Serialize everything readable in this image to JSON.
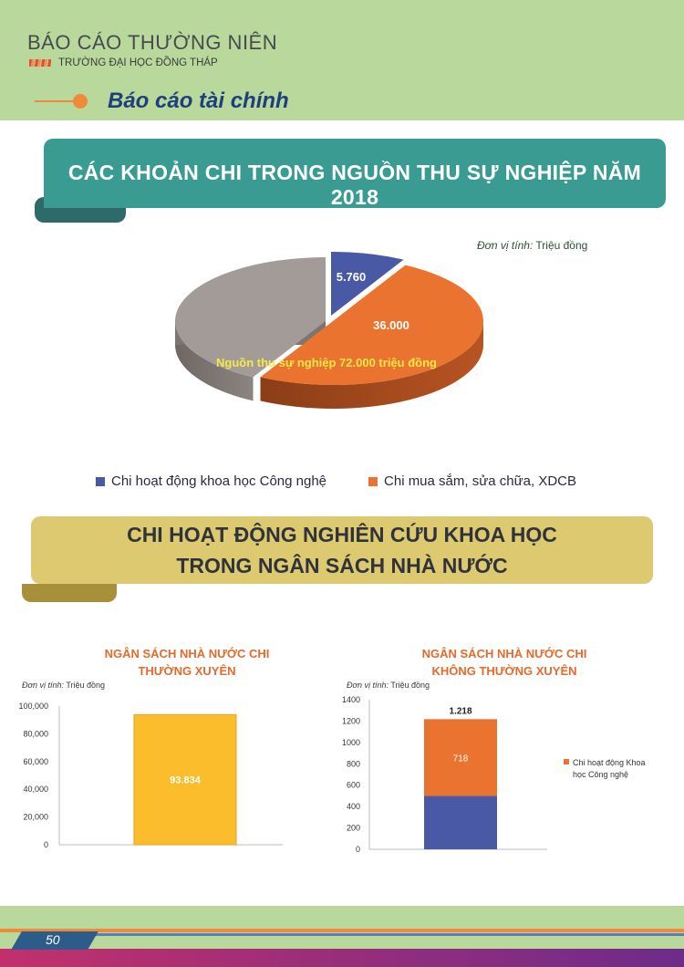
{
  "header": {
    "report_title": "BÁO CÁO THƯỜNG NIÊN",
    "school": "TRƯỜNG ĐẠI HỌC ĐỒNG THÁP",
    "section": "Báo cáo tài chính"
  },
  "banner1": {
    "title": "CÁC KHOẢN CHI TRONG NGUỒN THU SỰ NGHIỆP NĂM 2018"
  },
  "banner2": {
    "line1": "CHI HOẠT ĐỘNG NGHIÊN CỨU KHOA HỌC",
    "line2": "TRONG NGÂN SÁCH NHÀ NƯỚC"
  },
  "footer": {
    "page_number": "50"
  },
  "colors": {
    "blue": "#4a59a5",
    "orange": "#e9732f",
    "gray": "#a39b98",
    "yellow": "#fbbd2c",
    "teal": "#3a9b93",
    "gold": "#ddc970",
    "green_band": "#b9d89c"
  },
  "chart_data": [
    {
      "type": "pie",
      "unit_label_italic": "Đơn vị tính:",
      "unit_label": "Triệu đồng",
      "center_label": "Nguồn thu sự nghiệp 72.000 triệu đồng",
      "slices": [
        {
          "name": "Chi hoạt động khoa học Công nghệ",
          "value": 5760,
          "label": "5.760",
          "color": "#4a59a5"
        },
        {
          "name": "Chi mua sắm, sửa chữa, XDCB",
          "value": 36000,
          "label": "36.000",
          "color": "#e9732f"
        },
        {
          "name": "",
          "value": 30240,
          "label": "",
          "color": "#a39b98"
        }
      ],
      "legend": [
        "Chi hoạt động khoa học Công nghệ",
        "Chi mua sắm, sửa chữa, XDCB"
      ]
    },
    {
      "type": "bar",
      "title_line1": "NGÂN SÁCH NHÀ NƯỚC CHI",
      "title_line2": "THƯỜNG XUYÊN",
      "unit_label_italic": "Đơn vị tính:",
      "unit_label": "Triệu đồng",
      "categories": [
        ""
      ],
      "values": [
        93834
      ],
      "data_label": "93.834",
      "ylim": [
        0,
        100000
      ],
      "yticks": [
        "0",
        "20,000",
        "40,000",
        "60,000",
        "80,000",
        "100,000"
      ],
      "color": "#fbbd2c"
    },
    {
      "type": "bar",
      "stacked": true,
      "title_line1": "NGÂN SÁCH NHÀ NƯỚC CHI",
      "title_line2": "KHÔNG THƯỜNG XUYÊN",
      "unit_label_italic": "Đơn vị tính:",
      "unit_label": "Triệu đồng",
      "categories": [
        ""
      ],
      "series": [
        {
          "name": "",
          "values": [
            500
          ],
          "color": "#4a59a5"
        },
        {
          "name": "Chi hoạt động Khoa học Công nghệ",
          "values": [
            718
          ],
          "color": "#e9732f",
          "label": "718"
        }
      ],
      "total_label": "1.218",
      "ylim": [
        0,
        1400
      ],
      "yticks": [
        "0",
        "200",
        "400",
        "600",
        "800",
        "1000",
        "1200",
        "1400"
      ],
      "legend": [
        "Chi hoạt động Khoa học Công nghệ"
      ]
    }
  ]
}
